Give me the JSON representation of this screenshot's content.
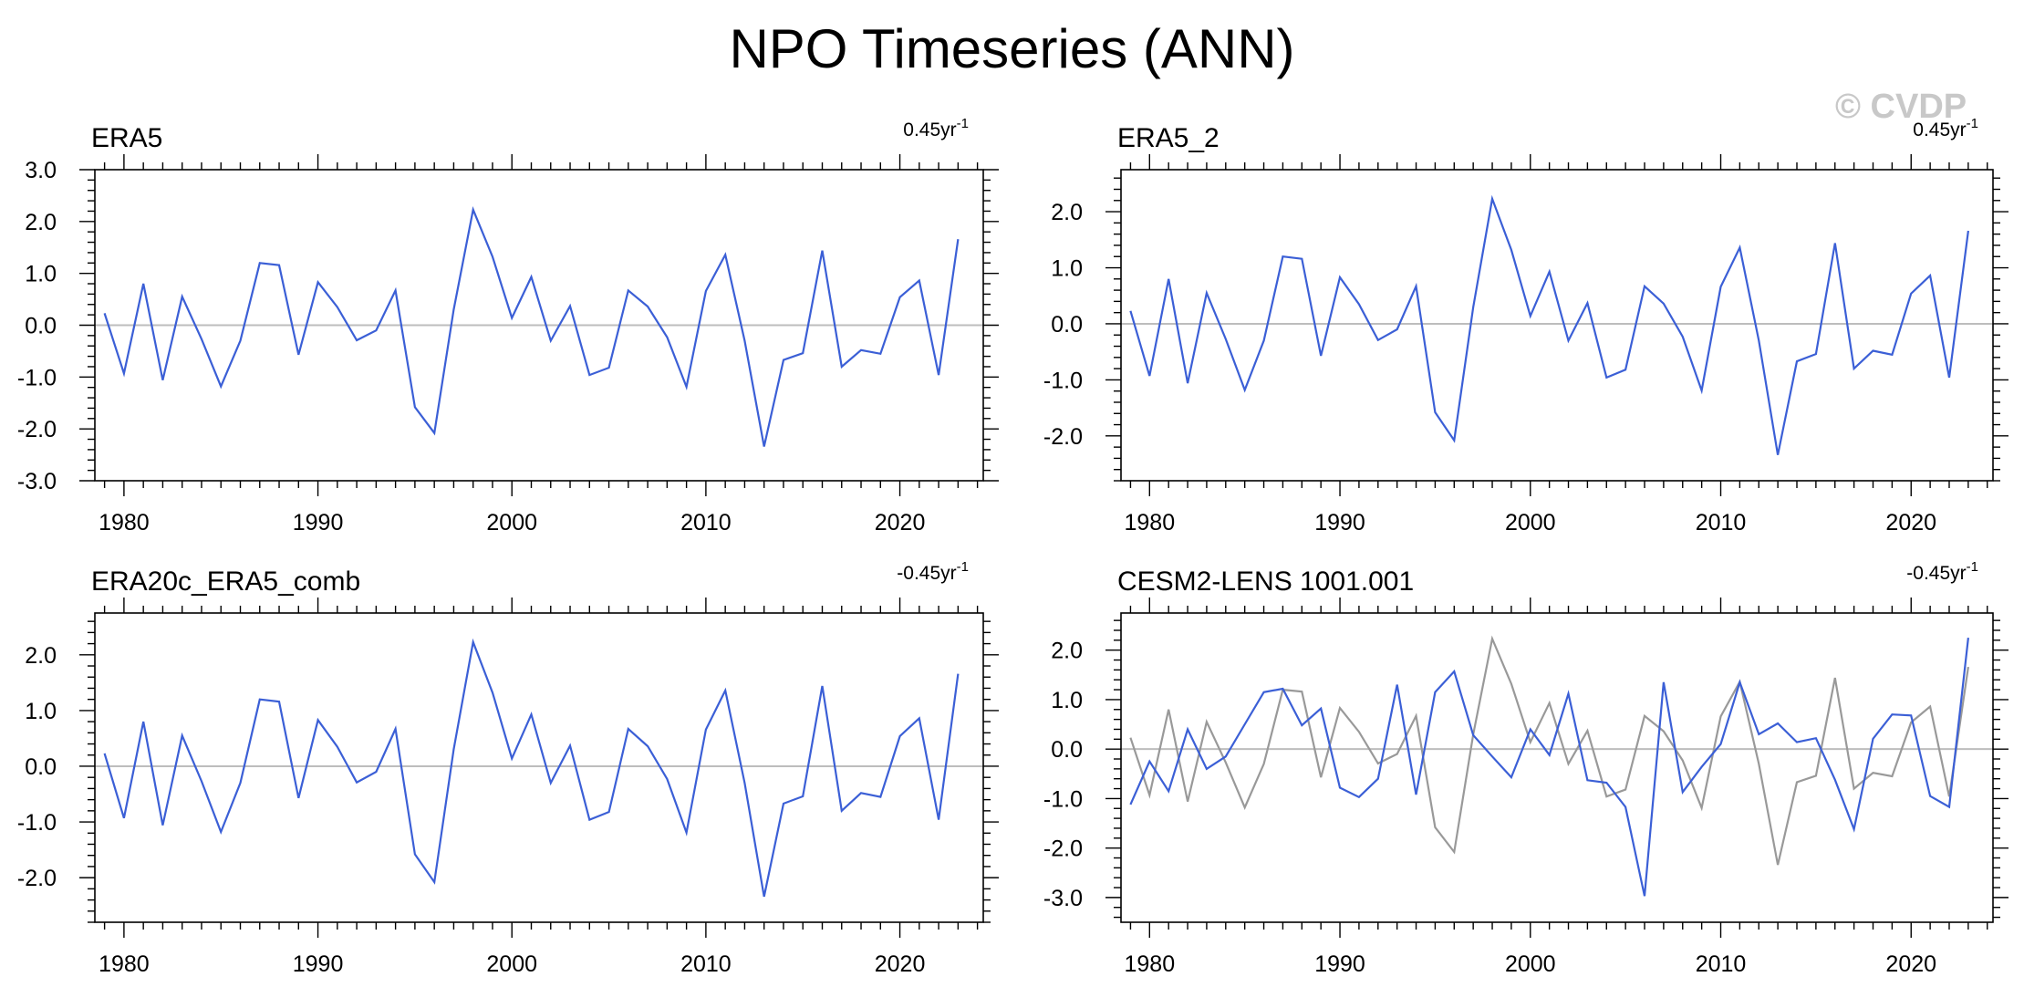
{
  "title": "NPO Timeseries (ANN)",
  "watermark": "© CVDP",
  "colors": {
    "series_primary": "#3b5fd6",
    "series_reference": "#999999",
    "zero_line": "#bdbdbd",
    "frame": "#000000"
  },
  "chart_data": [
    {
      "type": "line",
      "title": "ERA5",
      "trend_label": "0.45yr",
      "trend_sup": "-1",
      "xlim": [
        1978.5,
        2024.3
      ],
      "ylim": [
        -3.0,
        3.0
      ],
      "xticks": [
        1980,
        1990,
        2000,
        2010,
        2020
      ],
      "yticks": [
        "-3.0",
        "-2.0",
        "-1.0",
        "0.0",
        "1.0",
        "2.0",
        "3.0"
      ],
      "grid": false,
      "x": [
        1979,
        1980,
        1981,
        1982,
        1983,
        1984,
        1985,
        1986,
        1987,
        1988,
        1989,
        1990,
        1991,
        1992,
        1993,
        1994,
        1995,
        1996,
        1997,
        1998,
        1999,
        2000,
        2001,
        2002,
        2003,
        2004,
        2005,
        2006,
        2007,
        2008,
        2009,
        2010,
        2011,
        2012,
        2013,
        2014,
        2015,
        2016,
        2017,
        2018,
        2019,
        2020,
        2021,
        2022,
        2023
      ],
      "series": [
        {
          "values": [
            0.23,
            -0.93,
            0.8,
            -1.06,
            0.55,
            -0.27,
            -1.18,
            -0.3,
            1.2,
            1.16,
            -0.57,
            0.83,
            0.35,
            -0.29,
            -0.1,
            0.67,
            -1.58,
            -2.08,
            0.3,
            2.23,
            1.32,
            0.14,
            0.93,
            -0.3,
            0.37,
            -0.96,
            -0.82,
            0.67,
            0.36,
            -0.23,
            -1.19,
            0.66,
            1.36,
            -0.3,
            -2.34,
            -0.67,
            -0.54,
            1.44,
            -0.8,
            -0.48,
            -0.55,
            0.54,
            0.86,
            -0.96,
            1.66
          ]
        }
      ]
    },
    {
      "type": "line",
      "title": "ERA5_2",
      "trend_label": "0.45yr",
      "trend_sup": "-1",
      "xlim": [
        1978.5,
        2024.3
      ],
      "ylim": [
        -2.8,
        2.75
      ],
      "xticks": [
        1980,
        1990,
        2000,
        2010,
        2020
      ],
      "yticks": [
        "-2.0",
        "-1.0",
        "0.0",
        "1.0",
        "2.0"
      ],
      "grid": false,
      "x": [
        1979,
        1980,
        1981,
        1982,
        1983,
        1984,
        1985,
        1986,
        1987,
        1988,
        1989,
        1990,
        1991,
        1992,
        1993,
        1994,
        1995,
        1996,
        1997,
        1998,
        1999,
        2000,
        2001,
        2002,
        2003,
        2004,
        2005,
        2006,
        2007,
        2008,
        2009,
        2010,
        2011,
        2012,
        2013,
        2014,
        2015,
        2016,
        2017,
        2018,
        2019,
        2020,
        2021,
        2022,
        2023
      ],
      "series": [
        {
          "values": [
            0.23,
            -0.93,
            0.8,
            -1.06,
            0.55,
            -0.27,
            -1.18,
            -0.3,
            1.2,
            1.16,
            -0.57,
            0.83,
            0.35,
            -0.29,
            -0.1,
            0.67,
            -1.58,
            -2.08,
            0.3,
            2.23,
            1.32,
            0.14,
            0.93,
            -0.3,
            0.37,
            -0.96,
            -0.82,
            0.67,
            0.36,
            -0.23,
            -1.19,
            0.66,
            1.36,
            -0.3,
            -2.34,
            -0.67,
            -0.54,
            1.44,
            -0.8,
            -0.48,
            -0.55,
            0.54,
            0.86,
            -0.96,
            1.66
          ]
        }
      ]
    },
    {
      "type": "line",
      "title": "ERA20c_ERA5_comb",
      "trend_label": "-0.45yr",
      "trend_sup": "-1",
      "xlim": [
        1978.5,
        2024.3
      ],
      "ylim": [
        -2.8,
        2.75
      ],
      "xticks": [
        1980,
        1990,
        2000,
        2010,
        2020
      ],
      "yticks": [
        "-2.0",
        "-1.0",
        "0.0",
        "1.0",
        "2.0"
      ],
      "grid": false,
      "x": [
        1979,
        1980,
        1981,
        1982,
        1983,
        1984,
        1985,
        1986,
        1987,
        1988,
        1989,
        1990,
        1991,
        1992,
        1993,
        1994,
        1995,
        1996,
        1997,
        1998,
        1999,
        2000,
        2001,
        2002,
        2003,
        2004,
        2005,
        2006,
        2007,
        2008,
        2009,
        2010,
        2011,
        2012,
        2013,
        2014,
        2015,
        2016,
        2017,
        2018,
        2019,
        2020,
        2021,
        2022,
        2023
      ],
      "series": [
        {
          "values": [
            0.23,
            -0.93,
            0.8,
            -1.06,
            0.55,
            -0.27,
            -1.18,
            -0.3,
            1.2,
            1.16,
            -0.57,
            0.83,
            0.35,
            -0.29,
            -0.1,
            0.67,
            -1.58,
            -2.08,
            0.3,
            2.23,
            1.32,
            0.14,
            0.93,
            -0.3,
            0.37,
            -0.96,
            -0.82,
            0.67,
            0.36,
            -0.23,
            -1.19,
            0.66,
            1.36,
            -0.3,
            -2.34,
            -0.67,
            -0.54,
            1.44,
            -0.8,
            -0.48,
            -0.55,
            0.54,
            0.86,
            -0.96,
            1.66
          ]
        }
      ]
    },
    {
      "type": "line",
      "title": "CESM2-LENS 1001.001",
      "trend_label": "-0.45yr",
      "trend_sup": "-1",
      "xlim": [
        1978.5,
        2024.3
      ],
      "ylim": [
        -3.5,
        2.75
      ],
      "xticks": [
        1980,
        1990,
        2000,
        2010,
        2020
      ],
      "yticks": [
        "-3.0",
        "-2.0",
        "-1.0",
        "0.0",
        "1.0",
        "2.0"
      ],
      "grid": false,
      "x": [
        1979,
        1980,
        1981,
        1982,
        1983,
        1984,
        1985,
        1986,
        1987,
        1988,
        1989,
        1990,
        1991,
        1992,
        1993,
        1994,
        1995,
        1996,
        1997,
        1998,
        1999,
        2000,
        2001,
        2002,
        2003,
        2004,
        2005,
        2006,
        2007,
        2008,
        2009,
        2010,
        2011,
        2012,
        2013,
        2014,
        2015,
        2016,
        2017,
        2018,
        2019,
        2020,
        2021,
        2022,
        2023
      ],
      "series": [
        {
          "values": [
            0.23,
            -0.93,
            0.8,
            -1.06,
            0.55,
            -0.27,
            -1.18,
            -0.3,
            1.2,
            1.16,
            -0.57,
            0.83,
            0.35,
            -0.29,
            -0.1,
            0.67,
            -1.58,
            -2.08,
            0.3,
            2.23,
            1.32,
            0.14,
            0.93,
            -0.3,
            0.37,
            -0.96,
            -0.82,
            0.67,
            0.36,
            -0.23,
            -1.19,
            0.66,
            1.36,
            -0.3,
            -2.34,
            -0.67,
            -0.54,
            1.44,
            -0.8,
            -0.48,
            -0.55,
            0.54,
            0.86,
            -0.96,
            1.66
          ],
          "color": "#999999"
        },
        {
          "values": [
            -1.12,
            -0.25,
            -0.85,
            0.4,
            -0.4,
            -0.15,
            0.5,
            1.15,
            1.22,
            0.48,
            0.82,
            -0.78,
            -0.97,
            -0.6,
            1.3,
            -0.92,
            1.15,
            1.57,
            0.28,
            -0.15,
            -0.57,
            0.4,
            -0.12,
            1.12,
            -0.63,
            -0.68,
            -1.17,
            -2.97,
            1.35,
            -0.87,
            -0.36,
            0.1,
            1.35,
            0.3,
            0.52,
            0.14,
            0.22,
            -0.62,
            -1.62,
            0.21,
            0.7,
            0.68,
            -0.95,
            -1.17,
            2.25
          ],
          "color": "#3b5fd6"
        }
      ]
    }
  ]
}
